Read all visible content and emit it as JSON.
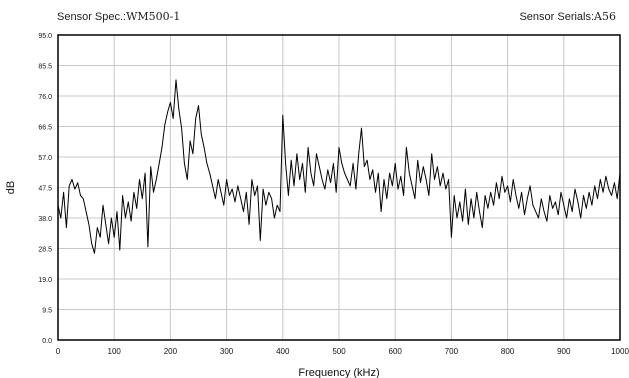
{
  "header": {
    "spec_label": "Sensor Spec.:",
    "spec_value": "WM500-1",
    "serial_label": "Sensor Serials:",
    "serial_value": "A56"
  },
  "chart_data": {
    "type": "line",
    "xlabel": "Frequency (kHz)",
    "ylabel": "dB",
    "xlim": [
      0,
      1000
    ],
    "ylim": [
      0,
      95
    ],
    "xticks": [
      0,
      100,
      200,
      300,
      400,
      500,
      600,
      700,
      800,
      900,
      1000
    ],
    "yticks": [
      "0.0",
      "9.5",
      "19.0",
      "28.5",
      "38.0",
      "47.5",
      "57.0",
      "66.5",
      "76.0",
      "85.5",
      "95.0"
    ],
    "grid": true,
    "line_color": "#000000",
    "series": [
      {
        "x": [
          0,
          5,
          10,
          15,
          20,
          25,
          30,
          35,
          40,
          45,
          50,
          55,
          60,
          65,
          70,
          75,
          80,
          85,
          90,
          95,
          100,
          105,
          110,
          115,
          120,
          125,
          130,
          135,
          140,
          145,
          150,
          155,
          160,
          165,
          170,
          175,
          180,
          185,
          190,
          195,
          200,
          205,
          210,
          215,
          220,
          225,
          230,
          235,
          240,
          245,
          250,
          255,
          260,
          265,
          270,
          275,
          280,
          285,
          290,
          295,
          300,
          305,
          310,
          315,
          320,
          325,
          330,
          335,
          340,
          345,
          350,
          355,
          360,
          365,
          370,
          375,
          380,
          385,
          390,
          395,
          400,
          405,
          410,
          415,
          420,
          425,
          430,
          435,
          440,
          445,
          450,
          455,
          460,
          465,
          470,
          475,
          480,
          485,
          490,
          495,
          500,
          505,
          510,
          515,
          520,
          525,
          530,
          535,
          540,
          545,
          550,
          555,
          560,
          565,
          570,
          575,
          580,
          585,
          590,
          595,
          600,
          605,
          610,
          615,
          620,
          625,
          630,
          635,
          640,
          645,
          650,
          655,
          660,
          665,
          670,
          675,
          680,
          685,
          690,
          695,
          700,
          705,
          710,
          715,
          720,
          725,
          730,
          735,
          740,
          745,
          750,
          755,
          760,
          765,
          770,
          775,
          780,
          785,
          790,
          795,
          800,
          805,
          810,
          815,
          820,
          825,
          830,
          835,
          840,
          845,
          850,
          855,
          860,
          865,
          870,
          875,
          880,
          885,
          890,
          895,
          900,
          905,
          910,
          915,
          920,
          925,
          930,
          935,
          940,
          945,
          950,
          955,
          960,
          965,
          970,
          975,
          980,
          985,
          990,
          995,
          1000
        ],
        "y": [
          42,
          38,
          46,
          35,
          48,
          50,
          47,
          49,
          45,
          44,
          40,
          36,
          30,
          27,
          35,
          32,
          42,
          36,
          30,
          38,
          32,
          40,
          28,
          45,
          38,
          43,
          37,
          46,
          41,
          50,
          44,
          52,
          29,
          54,
          46,
          50,
          55,
          60,
          67,
          71,
          74,
          69,
          81,
          72,
          66,
          55,
          50,
          62,
          58,
          69,
          73,
          64,
          60,
          55,
          52,
          48,
          44,
          50,
          46,
          42,
          50,
          45,
          47,
          43,
          48,
          44,
          40,
          46,
          36,
          50,
          45,
          48,
          31,
          47,
          42,
          46,
          44,
          38,
          42,
          40,
          70,
          55,
          45,
          56,
          48,
          58,
          50,
          55,
          46,
          60,
          52,
          48,
          58,
          54,
          50,
          47,
          53,
          49,
          55,
          46,
          60,
          55,
          52,
          50,
          48,
          55,
          47,
          58,
          66,
          54,
          56,
          50,
          53,
          46,
          52,
          40,
          50,
          44,
          52,
          48,
          55,
          47,
          51,
          45,
          60,
          52,
          48,
          44,
          56,
          49,
          54,
          50,
          45,
          58,
          50,
          54,
          48,
          52,
          47,
          50,
          32,
          45,
          38,
          43,
          37,
          47,
          36,
          44,
          38,
          46,
          40,
          35,
          45,
          41,
          46,
          42,
          49,
          44,
          51,
          46,
          48,
          43,
          50,
          45,
          41,
          46,
          39,
          44,
          48,
          42,
          40,
          38,
          44,
          40,
          37,
          45,
          41,
          43,
          39,
          46,
          42,
          38,
          44,
          40,
          47,
          43,
          38,
          45,
          41,
          46,
          42,
          48,
          44,
          50,
          46,
          51,
          47,
          45,
          49,
          44,
          52
        ]
      }
    ]
  }
}
